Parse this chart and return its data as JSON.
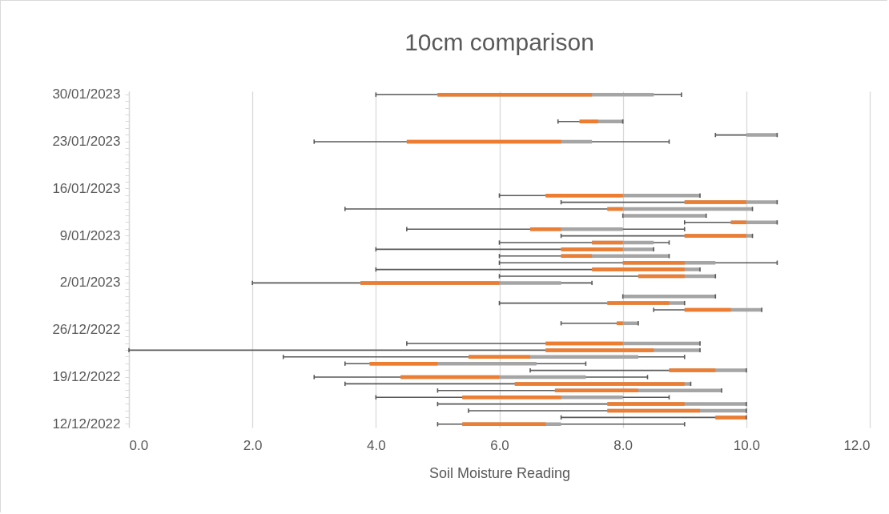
{
  "chart_data": {
    "type": "box",
    "title": "10cm comparison",
    "xlabel": "Soil Moisture Reading",
    "orientation": "horizontal",
    "categories": [
      "30/01/2023",
      null,
      null,
      null,
      null,
      null,
      null,
      "23/01/2023",
      null,
      null,
      null,
      null,
      null,
      null,
      "16/01/2023",
      null,
      null,
      null,
      null,
      null,
      null,
      "9/01/2023",
      null,
      null,
      null,
      null,
      null,
      null,
      "2/01/2023",
      null,
      null,
      null,
      null,
      null,
      null,
      "26/12/2022",
      null,
      null,
      null,
      null,
      null,
      null,
      "19/12/2022",
      null,
      null,
      null,
      null,
      null,
      null,
      "12/12/2022"
    ],
    "series": [
      {
        "color": "#a5a5a5",
        "boxes": [
          {
            "low": 4.0,
            "q1": 5.0,
            "median": 7.5,
            "q3": 8.5,
            "high": 8.95
          },
          null,
          null,
          null,
          {
            "low": 6.95,
            "q1": 7.3,
            "median": 7.6,
            "q3": 8.0,
            "high": 8.0
          },
          null,
          {
            "low": 9.5,
            "q1": 10.0,
            "median": 10.0,
            "q3": 10.5,
            "high": 10.5
          },
          {
            "low": 3.0,
            "q1": 4.5,
            "median": 7.0,
            "q3": 7.5,
            "high": 8.75
          },
          null,
          null,
          null,
          null,
          null,
          null,
          null,
          {
            "low": 6.0,
            "q1": 6.75,
            "median": 8.0,
            "q3": 9.25,
            "high": 9.25
          },
          {
            "low": 7.0,
            "q1": 9.0,
            "median": 10.0,
            "q3": 10.5,
            "high": 10.5
          },
          {
            "low": 3.5,
            "q1": 7.75,
            "median": 8.0,
            "q3": 10.1,
            "high": 10.1
          },
          {
            "low": 8.0,
            "q1": 8.0,
            "median": 8.0,
            "q3": 9.35,
            "high": 9.35
          },
          {
            "low": 9.0,
            "q1": 9.75,
            "median": 10.0,
            "q3": 10.5,
            "high": 10.5
          },
          {
            "low": 4.5,
            "q1": 6.5,
            "median": 7.0,
            "q3": 8.0,
            "high": 9.0
          },
          {
            "low": 7.0,
            "q1": 9.0,
            "median": 10.0,
            "q3": 10.1,
            "high": 10.1
          },
          {
            "low": 6.0,
            "q1": 7.5,
            "median": 8.0,
            "q3": 8.5,
            "high": 8.75
          },
          {
            "low": 4.0,
            "q1": 7.0,
            "median": 8.0,
            "q3": 8.5,
            "high": 8.5
          },
          {
            "low": 6.0,
            "q1": 7.0,
            "median": 7.5,
            "q3": 8.75,
            "high": 8.75
          },
          {
            "low": 6.0,
            "q1": 8.0,
            "median": 9.0,
            "q3": 9.5,
            "high": 10.5
          },
          {
            "low": 4.0,
            "q1": 7.5,
            "median": 9.0,
            "q3": 9.25,
            "high": 9.25
          },
          {
            "low": 6.0,
            "q1": 8.25,
            "median": 9.0,
            "q3": 9.5,
            "high": 9.5
          },
          {
            "low": 2.0,
            "q1": 3.75,
            "median": 6.0,
            "q3": 7.0,
            "high": 7.5
          },
          null,
          {
            "low": 8.0,
            "q1": 8.0,
            "median": 8.0,
            "q3": 9.5,
            "high": 9.5
          },
          {
            "low": 6.0,
            "q1": 7.75,
            "median": 8.75,
            "q3": 9.0,
            "high": 9.0
          },
          {
            "low": 8.5,
            "q1": 9.0,
            "median": 9.75,
            "q3": 10.25,
            "high": 10.25
          },
          null,
          {
            "low": 7.0,
            "q1": 7.9,
            "median": 8.0,
            "q3": 8.25,
            "high": 8.25
          },
          null,
          null,
          {
            "low": 4.5,
            "q1": 6.75,
            "median": 8.0,
            "q3": 9.25,
            "high": 9.25
          },
          {
            "low": 0.0,
            "q1": 6.75,
            "median": 8.5,
            "q3": 9.25,
            "high": 9.25
          },
          {
            "low": 2.5,
            "q1": 5.5,
            "median": 6.5,
            "q3": 8.25,
            "high": 9.0
          },
          {
            "low": 3.5,
            "q1": 3.9,
            "median": 5.0,
            "q3": 6.6,
            "high": 7.4
          },
          {
            "low": 6.5,
            "q1": 8.75,
            "median": 9.5,
            "q3": 10.0,
            "high": 10.0
          },
          {
            "low": 3.0,
            "q1": 4.4,
            "median": 6.0,
            "q3": 7.4,
            "high": 8.4
          },
          {
            "low": 3.5,
            "q1": 6.25,
            "median": 9.0,
            "q3": 9.1,
            "high": 9.1
          },
          {
            "low": 5.0,
            "q1": 6.9,
            "median": 8.25,
            "q3": 9.6,
            "high": 9.6
          },
          {
            "low": 4.0,
            "q1": 5.4,
            "median": 7.0,
            "q3": 8.0,
            "high": 8.75
          },
          {
            "low": 5.0,
            "q1": 7.75,
            "median": 9.0,
            "q3": 10.0,
            "high": 10.0
          },
          {
            "low": 5.5,
            "q1": 7.75,
            "median": 9.25,
            "q3": 10.0,
            "high": 10.0
          },
          {
            "low": 7.0,
            "q1": 9.5,
            "median": 10.0,
            "q3": 10.0,
            "high": 10.0
          },
          {
            "low": 5.0,
            "q1": 5.4,
            "median": 6.75,
            "q3": 7.0,
            "high": 9.0
          }
        ]
      }
    ],
    "xlim": [
      0,
      12
    ],
    "xticks": [
      {
        "value": 0,
        "label": "0.0"
      },
      {
        "value": 2,
        "label": "2.0"
      },
      {
        "value": 4,
        "label": "4.0"
      },
      {
        "value": 6,
        "label": "6.0"
      },
      {
        "value": 8,
        "label": "8.0"
      },
      {
        "value": 10,
        "label": "10.0"
      },
      {
        "value": 12,
        "label": "12.0"
      }
    ],
    "grid": "x"
  }
}
